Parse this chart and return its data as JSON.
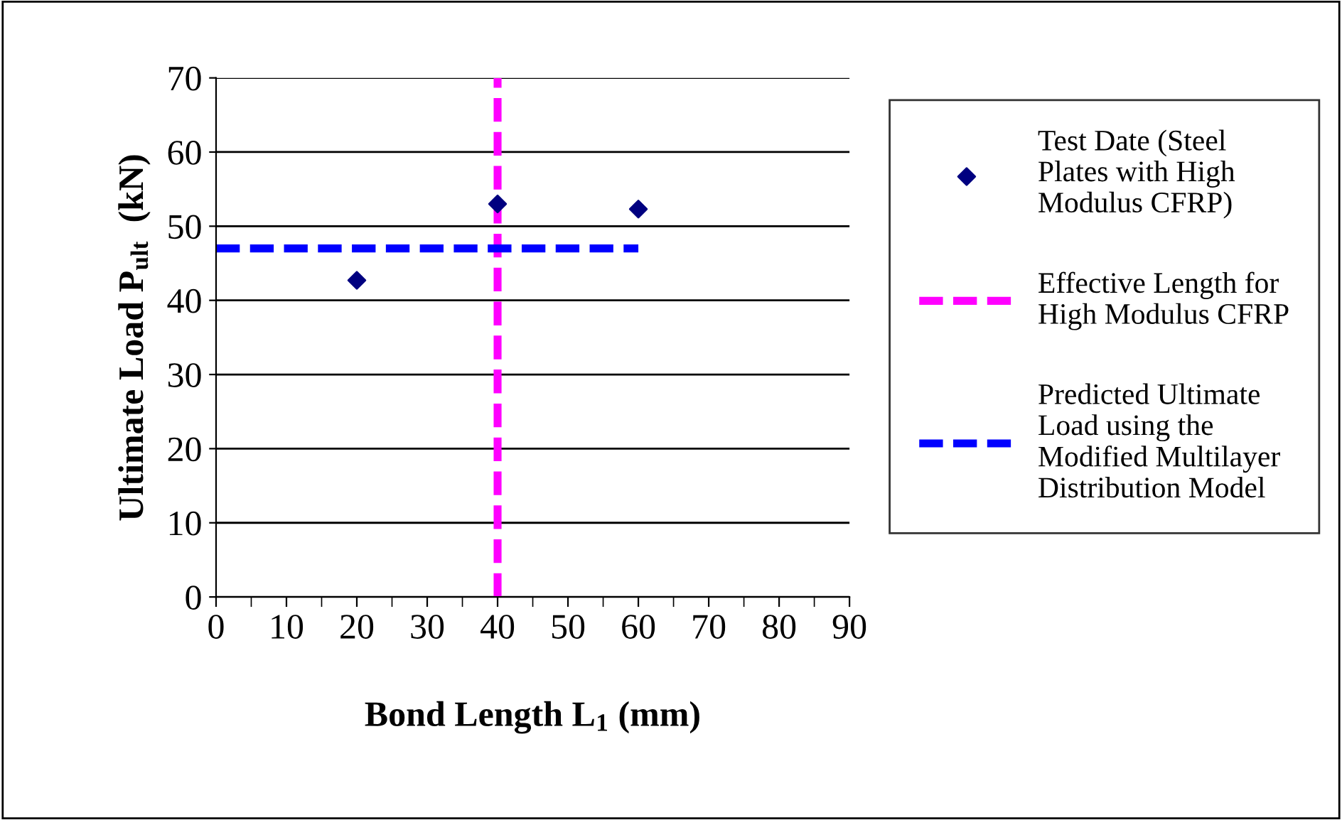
{
  "chart_data": {
    "type": "scatter",
    "xlabel": "Bond Length L$_{1}$ (mm)",
    "ylabel": "Ultimate Load P$_{ult}$  (kN)",
    "xlim": [
      0,
      90
    ],
    "xticks": [
      0,
      10,
      20,
      30,
      40,
      50,
      60,
      70,
      80,
      90
    ],
    "ylim": [
      0,
      70
    ],
    "yticks": [
      0,
      10,
      20,
      30,
      40,
      50,
      60,
      70
    ],
    "grid": "y",
    "legend": "right",
    "series": [
      {
        "name": "Test Date (Steel Plates with High Modulus CFRP)",
        "color": "#000080",
        "marker": "diamond",
        "x": [
          20,
          40,
          60
        ],
        "values": [
          42.7,
          53,
          52.3
        ]
      },
      {
        "name": "Effective Length for High Modulus CFRP",
        "type": "line",
        "color": "#ff00ff",
        "line_style": "dashed",
        "marker": "none",
        "x": [
          40,
          40
        ],
        "values": [
          0,
          70
        ]
      },
      {
        "name": "Predicted Ultimate Load using the Modified Multilayer Distribution Model",
        "type": "line",
        "color": "#0000ff",
        "line_style": "dashed",
        "marker": "none",
        "x": [
          0,
          60
        ],
        "values": [
          47,
          47
        ]
      }
    ]
  }
}
